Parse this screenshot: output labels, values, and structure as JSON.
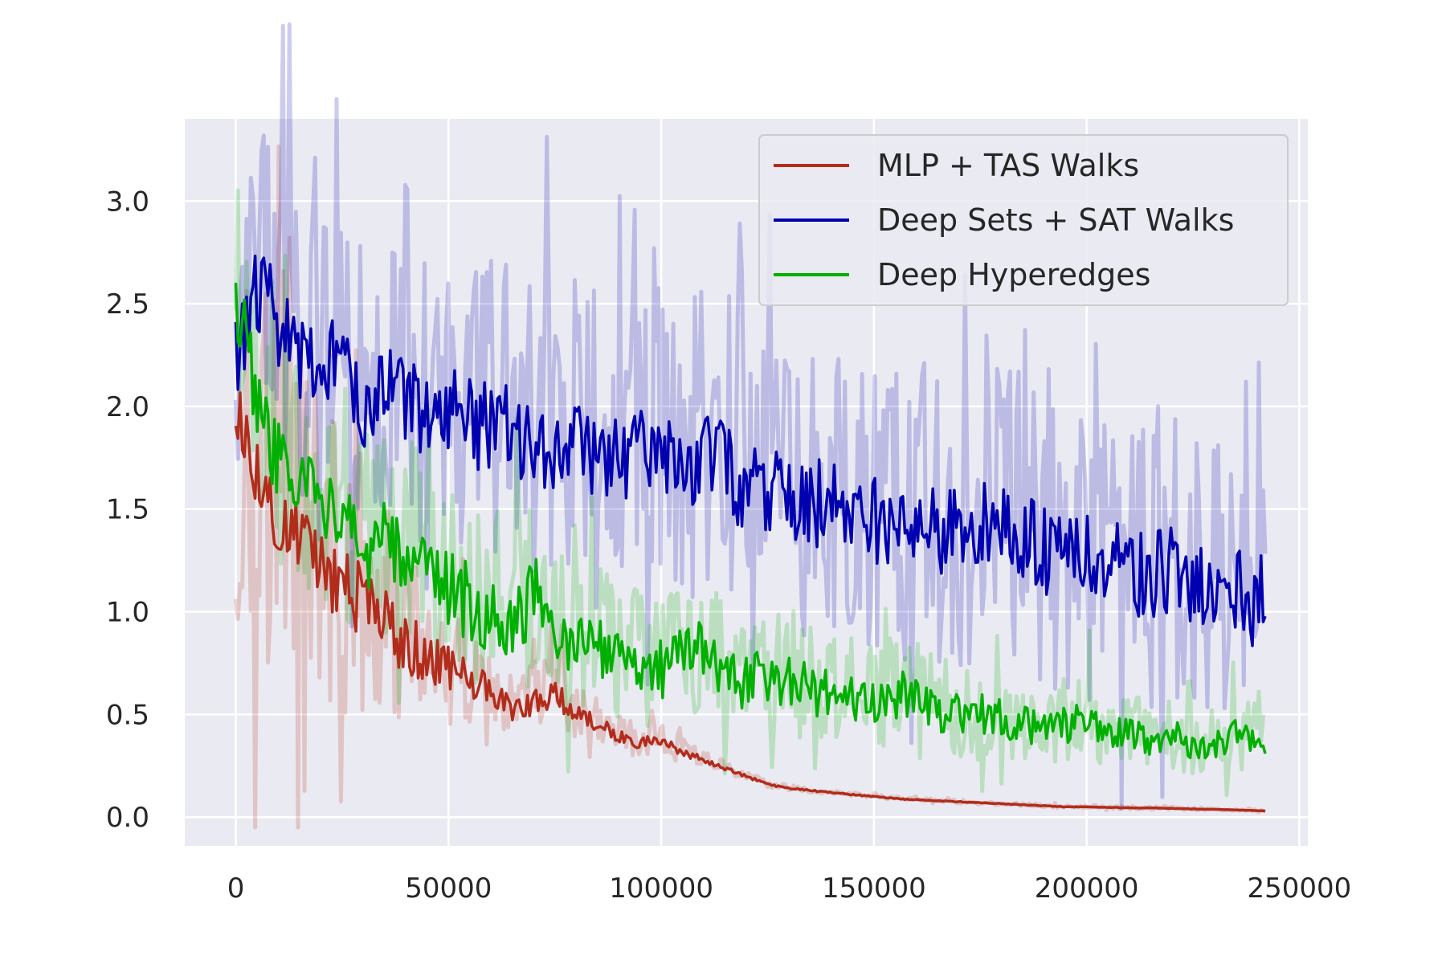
{
  "chart_data": {
    "type": "line",
    "title": "",
    "xlabel": "",
    "ylabel": "",
    "xlim": [
      -12000,
      252000
    ],
    "ylim": [
      -0.14,
      3.4
    ],
    "grid": true,
    "legend_placement": "top-right",
    "x_ticks": [
      0,
      50000,
      100000,
      150000,
      200000,
      250000
    ],
    "x_tick_labels": [
      "0",
      "50000",
      "100000",
      "150000",
      "200000",
      "250000"
    ],
    "y_ticks": [
      0.0,
      0.5,
      1.0,
      1.5,
      2.0,
      2.5,
      3.0
    ],
    "y_tick_labels": [
      "0.0",
      "0.5",
      "1.0",
      "1.5",
      "2.0",
      "2.5",
      "3.0"
    ],
    "colors": {
      "background": "#eaeaf2",
      "grid": "#ffffff",
      "text": "#262626"
    },
    "series": [
      {
        "name": "MLP + TAS Walks",
        "color": "#b22c1b",
        "x": [
          0,
          5000,
          10000,
          15000,
          20000,
          25000,
          30000,
          35000,
          40000,
          45000,
          50000,
          55000,
          60000,
          65000,
          70000,
          75000,
          80000,
          85000,
          90000,
          95000,
          100000,
          105000,
          110000,
          115000,
          120000,
          125000,
          130000,
          135000,
          140000,
          145000,
          150000,
          155000,
          160000,
          165000,
          170000,
          175000,
          180000,
          185000,
          190000,
          195000,
          200000,
          205000,
          210000,
          215000,
          220000,
          225000,
          230000,
          235000,
          240000,
          242000
        ],
        "values": [
          2.0,
          1.7,
          1.45,
          1.35,
          1.22,
          1.12,
          1.05,
          0.95,
          0.85,
          0.78,
          0.72,
          0.68,
          0.6,
          0.52,
          0.55,
          0.62,
          0.5,
          0.45,
          0.4,
          0.36,
          0.38,
          0.32,
          0.28,
          0.24,
          0.2,
          0.16,
          0.14,
          0.13,
          0.12,
          0.11,
          0.1,
          0.09,
          0.085,
          0.08,
          0.075,
          0.07,
          0.065,
          0.06,
          0.055,
          0.05,
          0.05,
          0.048,
          0.045,
          0.045,
          0.042,
          0.04,
          0.038,
          0.035,
          0.032,
          0.03
        ]
      },
      {
        "name": "Deep Sets + SAT Walks",
        "color": "#0000b0",
        "x": [
          0,
          5000,
          10000,
          15000,
          20000,
          25000,
          30000,
          35000,
          40000,
          45000,
          50000,
          55000,
          60000,
          65000,
          70000,
          75000,
          80000,
          85000,
          90000,
          95000,
          100000,
          105000,
          110000,
          115000,
          120000,
          125000,
          130000,
          135000,
          140000,
          145000,
          150000,
          155000,
          160000,
          165000,
          170000,
          175000,
          180000,
          185000,
          190000,
          195000,
          200000,
          205000,
          210000,
          215000,
          220000,
          225000,
          230000,
          235000,
          240000,
          242000
        ],
        "values": [
          2.22,
          2.6,
          2.4,
          2.25,
          2.2,
          2.25,
          2.0,
          2.1,
          2.05,
          1.95,
          2.0,
          1.92,
          1.9,
          1.88,
          1.85,
          1.8,
          1.82,
          1.78,
          1.75,
          1.8,
          1.82,
          1.72,
          1.75,
          1.7,
          1.6,
          1.62,
          1.58,
          1.55,
          1.5,
          1.55,
          1.45,
          1.42,
          1.4,
          1.38,
          1.4,
          1.42,
          1.38,
          1.35,
          1.3,
          1.28,
          1.25,
          1.22,
          1.2,
          1.18,
          1.2,
          1.15,
          1.12,
          1.1,
          1.0,
          1.15
        ]
      },
      {
        "name": "Deep Hyperedges",
        "color": "#00b000",
        "x": [
          0,
          5000,
          10000,
          15000,
          20000,
          25000,
          30000,
          35000,
          40000,
          45000,
          50000,
          55000,
          60000,
          65000,
          70000,
          75000,
          80000,
          85000,
          90000,
          95000,
          100000,
          105000,
          110000,
          115000,
          120000,
          125000,
          130000,
          135000,
          140000,
          145000,
          150000,
          155000,
          160000,
          165000,
          170000,
          175000,
          180000,
          185000,
          190000,
          195000,
          200000,
          205000,
          210000,
          215000,
          220000,
          225000,
          230000,
          235000,
          240000,
          242000
        ],
        "values": [
          2.55,
          2.0,
          1.72,
          1.62,
          1.5,
          1.42,
          1.3,
          1.35,
          1.25,
          1.15,
          1.1,
          1.05,
          1.0,
          0.98,
          1.1,
          0.85,
          0.8,
          0.85,
          0.78,
          0.75,
          0.72,
          0.78,
          0.8,
          0.68,
          0.65,
          0.7,
          0.66,
          0.62,
          0.6,
          0.58,
          0.55,
          0.6,
          0.58,
          0.52,
          0.5,
          0.5,
          0.48,
          0.45,
          0.42,
          0.45,
          0.48,
          0.42,
          0.4,
          0.38,
          0.4,
          0.35,
          0.36,
          0.4,
          0.38,
          0.37
        ]
      }
    ]
  }
}
